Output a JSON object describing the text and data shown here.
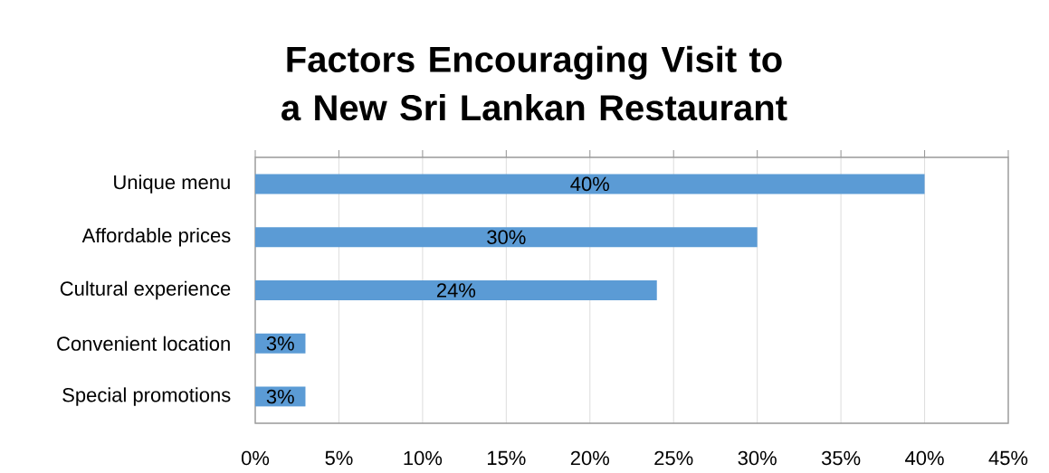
{
  "chart_data": {
    "type": "bar",
    "orientation": "horizontal",
    "title": "Factors Encouraging Visit to a New Sri Lankan Restaurant",
    "categories": [
      "Unique menu",
      "Affordable prices",
      "Cultural experience",
      "Convenient location",
      "Special promotions"
    ],
    "values": [
      40,
      30,
      24,
      3,
      3
    ],
    "value_labels": [
      "40%",
      "30%",
      "24%",
      "3%",
      "3%"
    ],
    "color": "#5b9bd5",
    "xlim": [
      0,
      45
    ],
    "xticks": [
      {
        "value": 0,
        "label": "0%"
      },
      {
        "value": 5,
        "label": "5%"
      },
      {
        "value": 10,
        "label": "10%"
      },
      {
        "value": 15,
        "label": "15%"
      },
      {
        "value": 20,
        "label": "20%"
      },
      {
        "value": 25,
        "label": "25%"
      },
      {
        "value": 30,
        "label": "30%"
      },
      {
        "value": 35,
        "label": "35%"
      },
      {
        "value": 40,
        "label": "40%"
      },
      {
        "value": 45,
        "label": "45%"
      }
    ],
    "grid": "x"
  }
}
